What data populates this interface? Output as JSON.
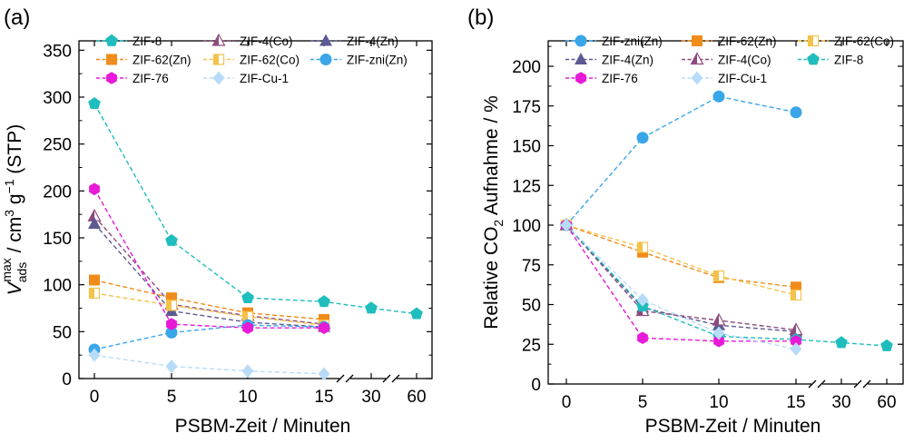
{
  "chart_data": [
    {
      "type": "line",
      "panel_label": "(a)",
      "xlabel": "PSBM-Zeit / Minuten",
      "ylabel_parts": [
        "V",
        "ads",
        "max",
        " / cm",
        "3",
        " g",
        "−1",
        " (STP)"
      ],
      "x_ticks": [
        "0",
        "5",
        "10",
        "15",
        "30",
        "60"
      ],
      "y_ticks": [
        "0",
        "50",
        "100",
        "150",
        "200",
        "250",
        "300",
        "350"
      ],
      "ylim": [
        0,
        360
      ],
      "x_axis_note": "broken x axis between 15 and 30 and between 30 and 60",
      "series": [
        {
          "name": "ZIF-8",
          "marker": "pentagon",
          "color": "#1fbdbd",
          "x": [
            "0",
            "5",
            "10",
            "15",
            "30",
            "60"
          ],
          "values": [
            293,
            147,
            86,
            82,
            75,
            69
          ]
        },
        {
          "name": "ZIF-4(Co)",
          "marker": "triangle-half",
          "color": "#8e4a7e",
          "x": [
            "0",
            "5",
            "10",
            "15"
          ],
          "values": [
            173,
            79,
            67,
            58
          ]
        },
        {
          "name": "ZIF-4(Zn)",
          "marker": "triangle",
          "color": "#5d5a91",
          "x": [
            "0",
            "5",
            "10",
            "15"
          ],
          "values": [
            165,
            72,
            60,
            55
          ]
        },
        {
          "name": "ZIF-62(Zn)",
          "marker": "square",
          "color": "#f08c1a",
          "x": [
            "0",
            "5",
            "10",
            "15"
          ],
          "values": [
            105,
            86,
            70,
            63
          ]
        },
        {
          "name": "ZIF-62(Co)",
          "marker": "square-half",
          "color": "#f4c24a",
          "x": [
            "0",
            "5",
            "10",
            "15"
          ],
          "values": [
            91,
            78,
            66,
            57
          ]
        },
        {
          "name": "ZIF-zni(Zn)",
          "marker": "circle",
          "color": "#3aa6ea",
          "x": [
            "0",
            "5",
            "10",
            "15"
          ],
          "values": [
            31,
            49,
            57,
            55
          ]
        },
        {
          "name": "ZIF-76",
          "marker": "hexagon",
          "color": "#e919d8",
          "x": [
            "0",
            "5",
            "10",
            "15"
          ],
          "values": [
            202,
            58,
            54,
            54
          ]
        },
        {
          "name": "ZIF-Cu-1",
          "marker": "diamond",
          "color": "#b8dcf8",
          "x": [
            "0",
            "5",
            "10",
            "15"
          ],
          "values": [
            25,
            13,
            8,
            5
          ]
        }
      ],
      "legend_order": [
        "ZIF-8",
        "ZIF-4(Co)",
        "ZIF-4(Zn)",
        "ZIF-62(Zn)",
        "ZIF-62(Co)",
        "ZIF-zni(Zn)",
        "ZIF-76",
        "ZIF-Cu-1"
      ],
      "legend": "top-right, three columns"
    },
    {
      "type": "line",
      "panel_label": "(b)",
      "xlabel": "PSBM-Zeit / Minuten",
      "ylabel_parts": [
        "Relative CO",
        "2",
        " Aufnahme / %"
      ],
      "x_ticks": [
        "0",
        "5",
        "10",
        "15",
        "30",
        "60"
      ],
      "y_ticks": [
        "0",
        "25",
        "50",
        "75",
        "100",
        "125",
        "150",
        "175",
        "200"
      ],
      "ylim": [
        0,
        216
      ],
      "x_axis_note": "broken x axis between 15 and 30 and between 30 and 60",
      "series": [
        {
          "name": "ZIF-zni(Zn)",
          "marker": "circle",
          "color": "#3aa6ea",
          "x": [
            "0",
            "5",
            "10",
            "15"
          ],
          "values": [
            100,
            155,
            181,
            171
          ]
        },
        {
          "name": "ZIF-62(Zn)",
          "marker": "square",
          "color": "#f08c1a",
          "x": [
            "0",
            "5",
            "10",
            "15"
          ],
          "values": [
            100,
            83,
            67,
            61
          ]
        },
        {
          "name": "ZIF-62(Co)",
          "marker": "square-half",
          "color": "#f4c24a",
          "x": [
            "0",
            "5",
            "10",
            "15"
          ],
          "values": [
            100,
            86,
            68,
            56
          ]
        },
        {
          "name": "ZIF-4(Zn)",
          "marker": "triangle",
          "color": "#5d5a91",
          "x": [
            "0",
            "5",
            "10",
            "15"
          ],
          "values": [
            100,
            48,
            37,
            33
          ]
        },
        {
          "name": "ZIF-4(Co)",
          "marker": "triangle-half",
          "color": "#8e4a7e",
          "x": [
            "0",
            "5",
            "10",
            "15"
          ],
          "values": [
            100,
            46,
            40,
            34
          ]
        },
        {
          "name": "ZIF-8",
          "marker": "pentagon",
          "color": "#1fbdbd",
          "x": [
            "0",
            "5",
            "10",
            "15",
            "30",
            "60"
          ],
          "values": [
            100,
            49,
            30,
            28,
            26,
            24
          ]
        },
        {
          "name": "ZIF-76",
          "marker": "hexagon",
          "color": "#e919d8",
          "x": [
            "0",
            "5",
            "10",
            "15"
          ],
          "values": [
            100,
            29,
            27,
            27
          ]
        },
        {
          "name": "ZIF-Cu-1",
          "marker": "diamond",
          "color": "#b8dcf8",
          "x": [
            "0",
            "5",
            "10",
            "15"
          ],
          "values": [
            100,
            53,
            32,
            22
          ]
        }
      ],
      "legend_order": [
        "ZIF-zni(Zn)",
        "ZIF-62(Zn)",
        "ZIF-62(Co)",
        "ZIF-4(Zn)",
        "ZIF-4(Co)",
        "ZIF-8",
        "ZIF-76",
        "ZIF-Cu-1"
      ],
      "legend": "top-right, three columns"
    }
  ]
}
